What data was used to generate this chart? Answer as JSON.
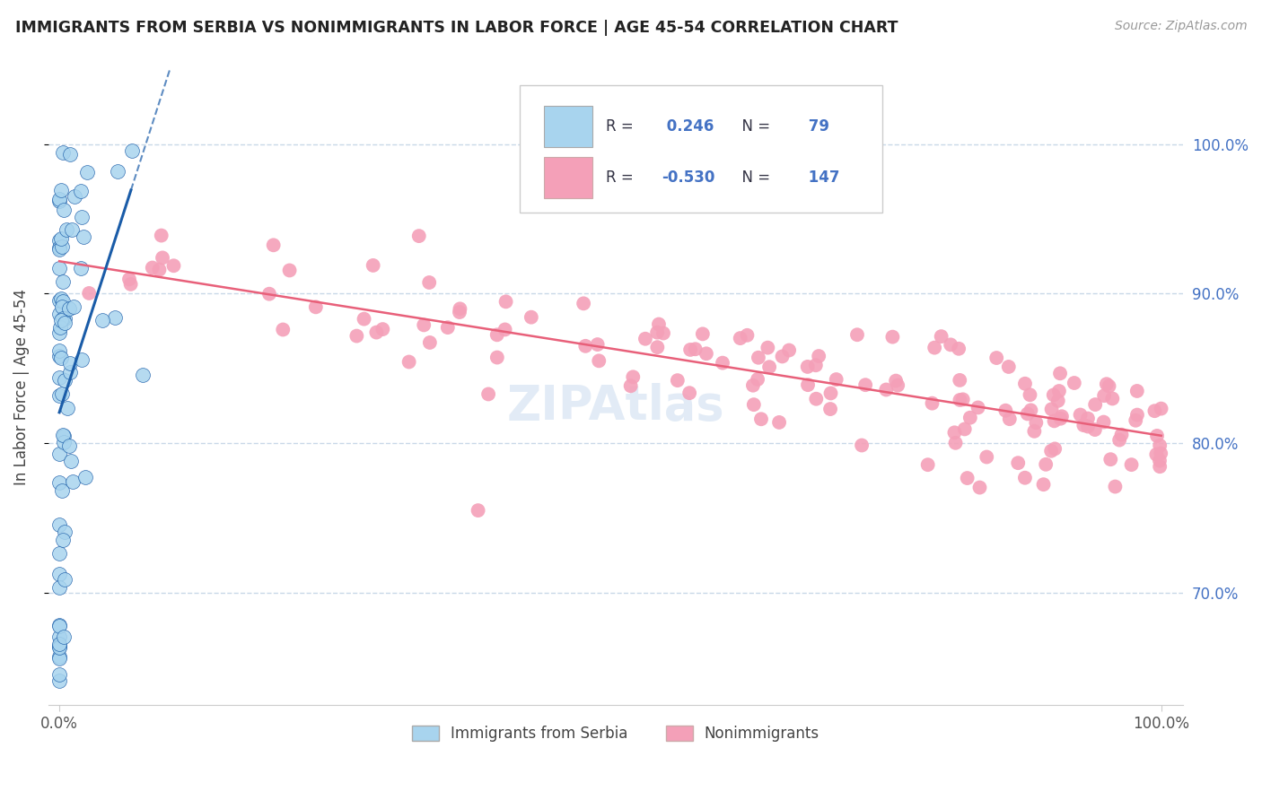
{
  "title": "IMMIGRANTS FROM SERBIA VS NONIMMIGRANTS IN LABOR FORCE | AGE 45-54 CORRELATION CHART",
  "source": "Source: ZipAtlas.com",
  "ylabel": "In Labor Force | Age 45-54",
  "legend_label1": "Immigrants from Serbia",
  "legend_label2": "Nonimmigrants",
  "R1": 0.246,
  "N1": 79,
  "R2": -0.53,
  "N2": 147,
  "blue_color": "#a8d4ee",
  "pink_color": "#f4a0b8",
  "blue_line_color": "#1a5ca8",
  "pink_line_color": "#e8607a",
  "grid_color": "#c8d8e8",
  "watermark": "ZIPAtlas",
  "background_color": "#ffffff",
  "ylim_min": 0.625,
  "ylim_max": 1.05,
  "xlim_min": -0.01,
  "xlim_max": 1.02,
  "yticks": [
    0.7,
    0.8,
    0.9,
    1.0
  ],
  "ytick_labels": [
    "70.0%",
    "80.0%",
    "90.0%",
    "100.0%"
  ],
  "xticks": [
    0.0,
    1.0
  ],
  "xtick_labels": [
    "0.0%",
    "100.0%"
  ]
}
